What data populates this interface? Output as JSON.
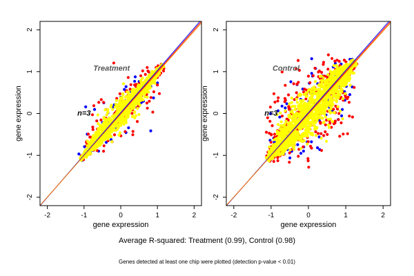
{
  "chart_data": [
    {
      "type": "scatter",
      "title": "",
      "panel_label": "Treatment",
      "n_label": "n=3",
      "xlabel": "gene expression",
      "ylabel": "gene expression",
      "xlim": [
        -2.2,
        2.2
      ],
      "ylim": [
        -2.2,
        2.2
      ],
      "xticks": [
        "-2",
        "-1",
        "0",
        "1",
        "2"
      ],
      "yticks": [
        "-2",
        "-1",
        "0",
        "1",
        "2"
      ],
      "grid": false,
      "cloud": {
        "x_range": [
          -1.1,
          1.15
        ],
        "spread": 0.12,
        "outlier_spread": 0.3
      },
      "series": [
        {
          "name": "",
          "color": "#0000ff",
          "count": 70
        },
        {
          "name": "",
          "color": "#ff0000",
          "count": 160
        },
        {
          "name": "",
          "color": "#ffff00",
          "count": 1200
        }
      ],
      "reference_lines": [
        {
          "kind": "y=x",
          "color": "#ff0000"
        },
        {
          "kind": "fit",
          "color": "#0000ff"
        },
        {
          "kind": "fit",
          "color": "#ff8800"
        }
      ]
    },
    {
      "type": "scatter",
      "title": "",
      "panel_label": "Control",
      "n_label": "n=3",
      "xlabel": "gene expression",
      "ylabel": "gene expression",
      "xlim": [
        -2.2,
        2.2
      ],
      "ylim": [
        -2.2,
        2.2
      ],
      "xticks": [
        "-2",
        "-1",
        "0",
        "1",
        "2"
      ],
      "yticks": [
        "-2",
        "-1",
        "0",
        "1",
        "2"
      ],
      "grid": false,
      "cloud": {
        "x_range": [
          -1.1,
          1.25
        ],
        "spread": 0.22,
        "outlier_spread": 0.45
      },
      "series": [
        {
          "name": "",
          "color": "#0000ff",
          "count": 110
        },
        {
          "name": "",
          "color": "#ff0000",
          "count": 360
        },
        {
          "name": "",
          "color": "#ffff00",
          "count": 1500
        }
      ],
      "reference_lines": [
        {
          "kind": "y=x",
          "color": "#ff0000"
        },
        {
          "kind": "fit",
          "color": "#0000ff"
        },
        {
          "kind": "fit",
          "color": "#ff8800"
        }
      ]
    }
  ],
  "caption_main": "Average R-squared: Treatment (0.99), Control (0.98)",
  "caption_sub": "Genes detected at least one chip were plotted (detection p-value < 0.01)"
}
